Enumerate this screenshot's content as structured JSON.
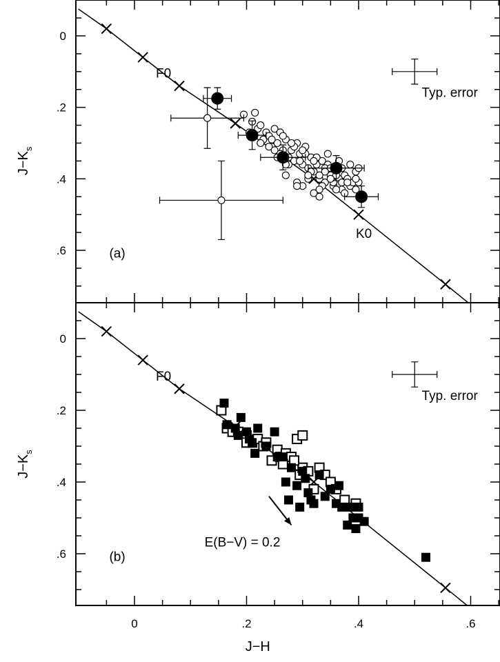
{
  "chart_data": [
    {
      "type": "scatter",
      "panel_label": "(a)",
      "xlabel": "J−H",
      "ylabel_main": "J−K",
      "ylabel_sub": "s",
      "xlim": [
        -0.1,
        0.8
      ],
      "ylim": [
        0.74,
        -0.1
      ],
      "y_inverted": true,
      "x_ticks": [
        0,
        0.2,
        0.4,
        0.6
      ],
      "y_ticks": [
        0,
        0.2,
        0.4,
        0.6
      ],
      "y_tick_labels": [
        "0",
        ".2",
        ".4",
        ".6"
      ],
      "grid": false,
      "sequence_line": {
        "name": "dwarf sequence",
        "x": [
          -0.1,
          -0.05,
          0.015,
          0.08,
          0.18,
          0.32,
          0.4,
          0.555,
          0.61
        ],
        "y": [
          -0.075,
          -0.02,
          0.06,
          0.14,
          0.245,
          0.4,
          0.5,
          0.695,
          0.765
        ]
      },
      "sequence_marks": {
        "x": [
          -0.05,
          0.015,
          0.08,
          0.18,
          0.32,
          0.4,
          0.555
        ],
        "y": [
          -0.02,
          0.06,
          0.14,
          0.245,
          0.4,
          0.5,
          0.695
        ]
      },
      "labels": [
        {
          "text": "F0",
          "x": 0.08,
          "y": 0.14
        },
        {
          "text": "K0",
          "x": 0.4,
          "y": 0.5
        },
        {
          "text": "Typ. error",
          "x": 0.495,
          "y": 0.14
        }
      ],
      "series": [
        {
          "name": "open circles",
          "marker": "open-circle",
          "x": [
            0.195,
            0.21,
            0.215,
            0.22,
            0.225,
            0.23,
            0.235,
            0.24,
            0.245,
            0.25,
            0.255,
            0.26,
            0.265,
            0.27,
            0.275,
            0.28,
            0.285,
            0.29,
            0.295,
            0.3,
            0.305,
            0.31,
            0.315,
            0.32,
            0.325,
            0.33,
            0.335,
            0.34,
            0.345,
            0.35,
            0.355,
            0.36,
            0.365,
            0.37,
            0.375,
            0.385,
            0.39,
            0.395,
            0.4,
            0.205,
            0.225,
            0.245,
            0.265,
            0.285,
            0.305,
            0.325,
            0.345,
            0.365,
            0.385,
            0.24,
            0.26,
            0.28,
            0.3,
            0.32,
            0.34,
            0.36,
            0.38,
            0.4,
            0.255,
            0.275,
            0.295,
            0.315,
            0.335,
            0.355,
            0.375,
            0.395,
            0.27,
            0.29,
            0.31,
            0.33,
            0.35,
            0.37,
            0.3,
            0.32,
            0.34,
            0.36,
            0.38,
            0.27,
            0.29,
            0.31,
            0.33,
            0.35,
            0.37,
            0.395,
            0.25,
            0.33,
            0.345
          ],
          "y": [
            0.22,
            0.24,
            0.215,
            0.26,
            0.25,
            0.29,
            0.27,
            0.28,
            0.31,
            0.26,
            0.3,
            0.27,
            0.32,
            0.29,
            0.34,
            0.32,
            0.35,
            0.3,
            0.33,
            0.36,
            0.31,
            0.37,
            0.34,
            0.38,
            0.36,
            0.4,
            0.35,
            0.41,
            0.37,
            0.39,
            0.42,
            0.38,
            0.4,
            0.43,
            0.39,
            0.42,
            0.41,
            0.38,
            0.37,
            0.27,
            0.3,
            0.29,
            0.28,
            0.31,
            0.33,
            0.34,
            0.36,
            0.35,
            0.36,
            0.31,
            0.33,
            0.3,
            0.32,
            0.35,
            0.37,
            0.39,
            0.4,
            0.41,
            0.34,
            0.36,
            0.35,
            0.38,
            0.42,
            0.41,
            0.44,
            0.43,
            0.39,
            0.41,
            0.4,
            0.43,
            0.37,
            0.41,
            0.42,
            0.44,
            0.38,
            0.43,
            0.41,
            0.36,
            0.42,
            0.39,
            0.45,
            0.4,
            0.37,
            0.4,
            0.32,
            0.39,
            0.33
          ],
          "error_bars": [
            {
              "x": 0.13,
              "y": 0.23,
              "xerr": 0.065,
              "yerr": 0.085
            },
            {
              "x": 0.155,
              "y": 0.46,
              "xerr": 0.11,
              "yerr": 0.11
            }
          ]
        },
        {
          "name": "filled circles",
          "marker": "filled-circle",
          "x": [
            0.148,
            0.21,
            0.265,
            0.36,
            0.405
          ],
          "y": [
            0.175,
            0.278,
            0.34,
            0.37,
            0.45
          ],
          "xerr": [
            0.025,
            0.025,
            0.04,
            0.05,
            0.03
          ],
          "yerr": [
            0.03,
            0.04,
            0.035,
            0.035,
            0.03
          ]
        }
      ],
      "typical_error_bar": {
        "x": 0.5,
        "y": 0.1,
        "xerr": 0.04,
        "yerr": 0.035
      }
    },
    {
      "type": "scatter",
      "panel_label": "(b)",
      "xlabel": "J−H",
      "ylabel_main": "J−K",
      "ylabel_sub": "s",
      "xlim": [
        -0.1,
        0.8
      ],
      "ylim": [
        0.74,
        -0.1
      ],
      "y_inverted": true,
      "x_ticks": [
        0,
        0.2,
        0.4,
        0.6
      ],
      "x_tick_labels": [
        "0",
        ".2",
        ".4",
        ".6"
      ],
      "y_ticks": [
        0,
        0.2,
        0.4,
        0.6
      ],
      "y_tick_labels": [
        "0",
        ".2",
        ".4",
        ".6"
      ],
      "grid": false,
      "sequence_line": {
        "name": "dwarf sequence",
        "x": [
          -0.1,
          -0.05,
          0.015,
          0.08,
          0.18,
          0.32,
          0.4,
          0.555,
          0.61
        ],
        "y": [
          -0.075,
          -0.02,
          0.06,
          0.14,
          0.245,
          0.4,
          0.5,
          0.695,
          0.765
        ]
      },
      "sequence_marks": {
        "x": [
          -0.05,
          0.015,
          0.08,
          0.18,
          0.32,
          0.555
        ],
        "y": [
          -0.02,
          0.06,
          0.14,
          0.245,
          0.4,
          0.695
        ]
      },
      "labels": [
        {
          "text": "F0",
          "x": 0.08,
          "y": 0.14
        },
        {
          "text": "Typ. error",
          "x": 0.495,
          "y": 0.14
        }
      ],
      "reddening_vector": {
        "label": "E(B−V) = 0.2",
        "from": [
          0.24,
          0.44
        ],
        "to": [
          0.28,
          0.52
        ]
      },
      "series": [
        {
          "name": "open squares",
          "marker": "open-square",
          "x": [
            0.155,
            0.165,
            0.175,
            0.185,
            0.2,
            0.21,
            0.22,
            0.23,
            0.235,
            0.245,
            0.255,
            0.26,
            0.27,
            0.275,
            0.28,
            0.29,
            0.295,
            0.3,
            0.31,
            0.32,
            0.33,
            0.34,
            0.35,
            0.36,
            0.375,
            0.395,
            0.285,
            0.265,
            0.3,
            0.2
          ],
          "y": [
            0.2,
            0.25,
            0.26,
            0.26,
            0.27,
            0.29,
            0.28,
            0.3,
            0.29,
            0.34,
            0.31,
            0.33,
            0.32,
            0.34,
            0.33,
            0.28,
            0.38,
            0.36,
            0.37,
            0.42,
            0.36,
            0.38,
            0.4,
            0.42,
            0.45,
            0.46,
            0.34,
            0.35,
            0.27,
            0.29
          ],
          "error_bars": []
        },
        {
          "name": "filled squares",
          "marker": "filled-square",
          "x": [
            0.16,
            0.165,
            0.18,
            0.185,
            0.19,
            0.2,
            0.205,
            0.21,
            0.215,
            0.22,
            0.235,
            0.25,
            0.255,
            0.265,
            0.27,
            0.28,
            0.29,
            0.3,
            0.305,
            0.31,
            0.315,
            0.32,
            0.33,
            0.34,
            0.35,
            0.36,
            0.37,
            0.38,
            0.39,
            0.395,
            0.4,
            0.41,
            0.275,
            0.4,
            0.385,
            0.365,
            0.295,
            0.52
          ],
          "y": [
            0.18,
            0.24,
            0.25,
            0.27,
            0.22,
            0.26,
            0.28,
            0.29,
            0.32,
            0.25,
            0.3,
            0.26,
            0.33,
            0.33,
            0.4,
            0.36,
            0.41,
            0.37,
            0.39,
            0.43,
            0.45,
            0.46,
            0.38,
            0.44,
            0.42,
            0.46,
            0.47,
            0.52,
            0.5,
            0.53,
            0.47,
            0.51,
            0.45,
            0.5,
            0.47,
            0.41,
            0.47,
            0.61
          ]
        }
      ],
      "typical_error_bar": {
        "x": 0.5,
        "y": 0.1,
        "xerr": 0.04,
        "yerr": 0.035
      }
    }
  ]
}
